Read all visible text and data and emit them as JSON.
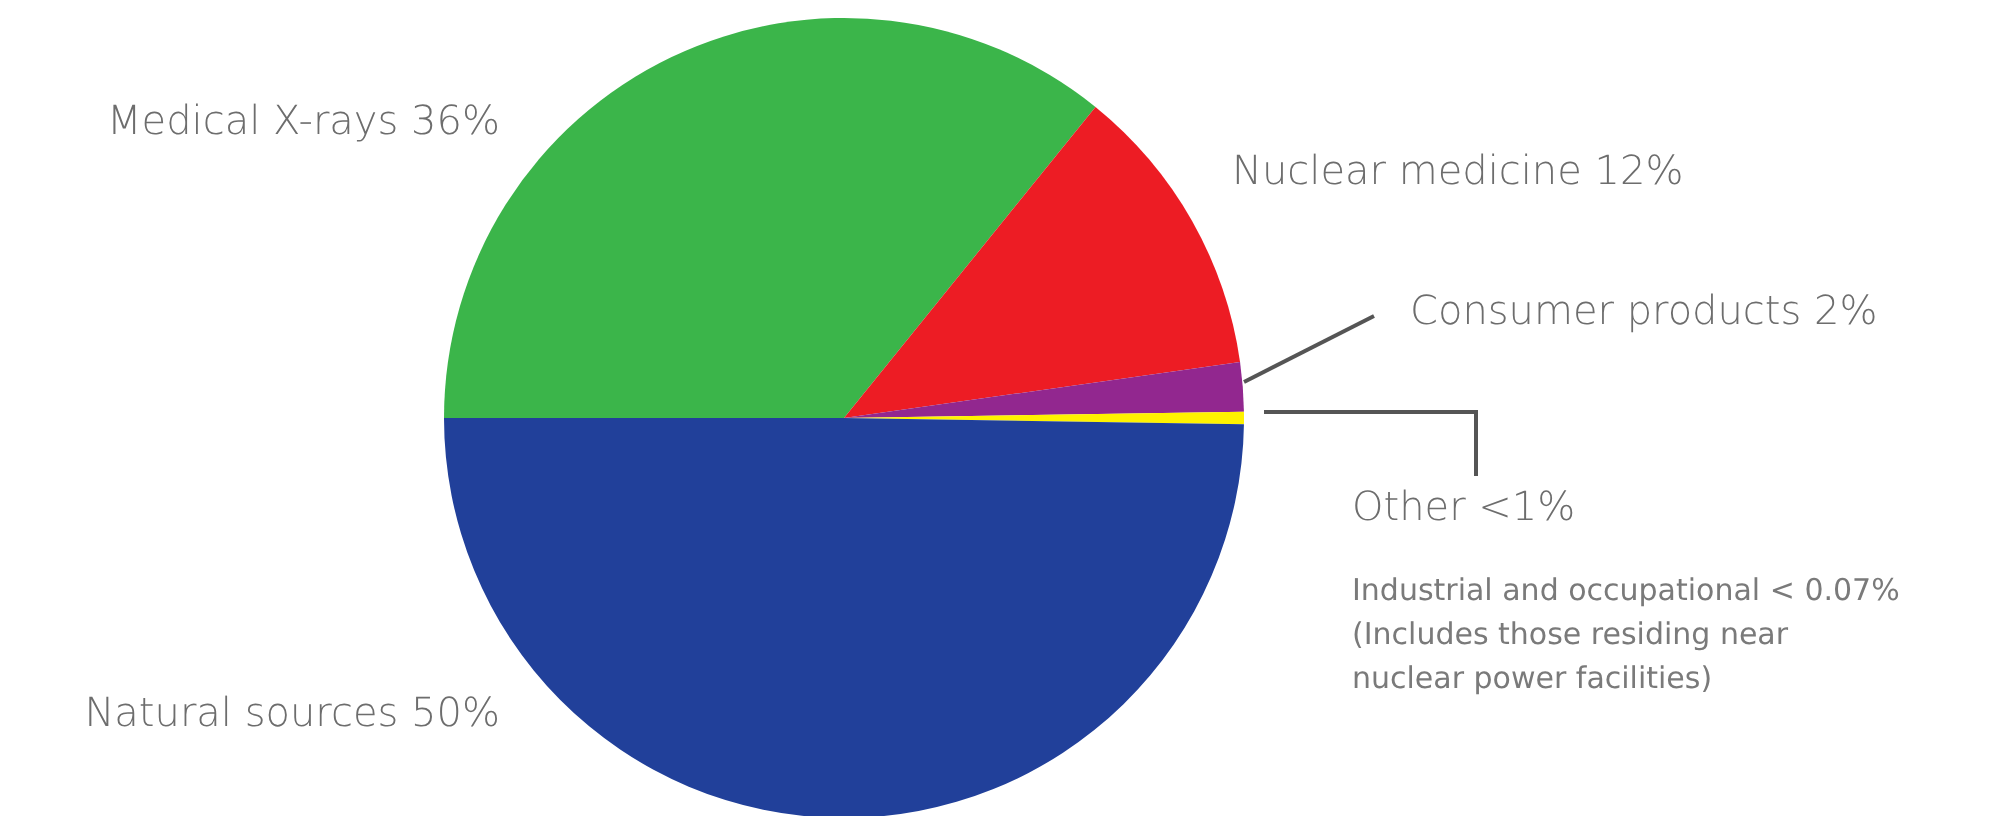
{
  "chart_data": {
    "type": "pie",
    "categories": [
      "Medical X-rays",
      "Nuclear medicine",
      "Consumer products",
      "Other",
      "Natural sources"
    ],
    "values": [
      36,
      12,
      2,
      0.5,
      50
    ],
    "colors": [
      "#3bb54a",
      "#ed1c24",
      "#92278f",
      "#fff200",
      "#21409a"
    ],
    "value_labels": [
      "36%",
      "12%",
      "2%",
      "<1%",
      "50%"
    ],
    "annotations": [
      "Industrial and occupational < 0.07%\n(Includes those residing near\nnuclear power facilities)"
    ]
  }
}
